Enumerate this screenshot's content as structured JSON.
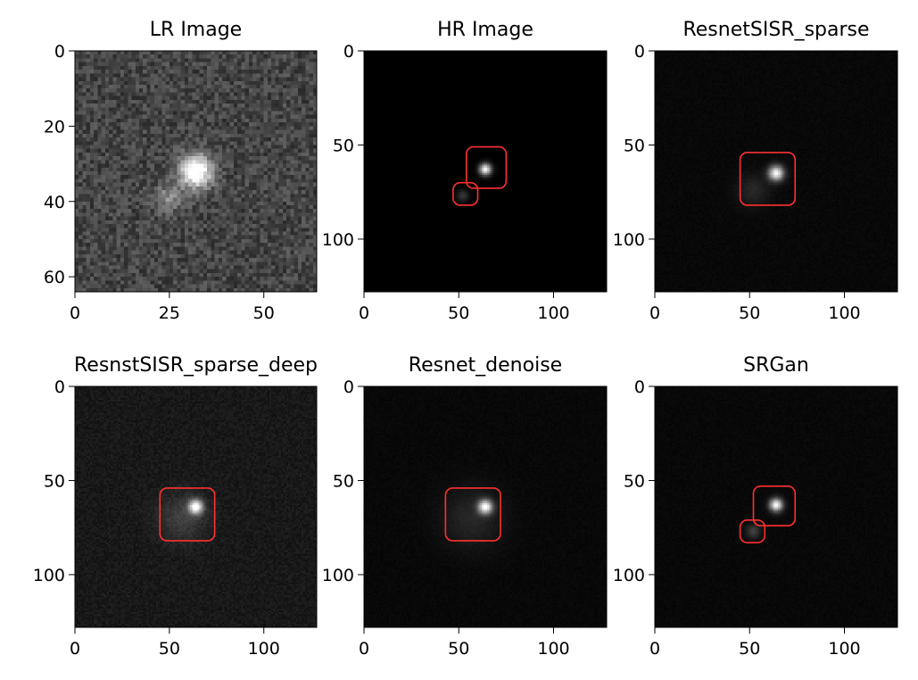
{
  "chart_data": [
    {
      "type": "image",
      "title": "LR Image",
      "xlim": [
        0,
        64
      ],
      "ylim": [
        64,
        0
      ],
      "xticks": [
        0,
        25,
        50
      ],
      "yticks": [
        0,
        20,
        40,
        60
      ],
      "noise": "high",
      "sources": [
        {
          "x": 32,
          "y": 32,
          "peak": 0.92,
          "sigma": 3.0
        },
        {
          "x": 25,
          "y": 39,
          "peak": 0.28,
          "sigma": 2.6
        }
      ],
      "boxes": []
    },
    {
      "type": "image",
      "title": "HR Image",
      "xlim": [
        0,
        128
      ],
      "ylim": [
        128,
        0
      ],
      "xticks": [
        0,
        50,
        100
      ],
      "yticks": [
        0,
        50,
        100
      ],
      "noise": "none",
      "sources": [
        {
          "x": 64,
          "y": 63,
          "peak": 0.98,
          "sigma": 2.2
        },
        {
          "x": 52,
          "y": 77,
          "peak": 0.22,
          "sigma": 2.2
        }
      ],
      "boxes": [
        {
          "x0": 54,
          "y0": 51,
          "x1": 75,
          "y1": 73
        },
        {
          "x0": 47,
          "y0": 70,
          "x1": 60,
          "y1": 82
        }
      ]
    },
    {
      "type": "image",
      "title": "ResnetSISR_sparse",
      "xlim": [
        0,
        128
      ],
      "ylim": [
        128,
        0
      ],
      "xticks": [
        0,
        50,
        100
      ],
      "yticks": [
        0,
        50,
        100
      ],
      "noise": "low",
      "sources": [
        {
          "x": 64,
          "y": 65,
          "peak": 0.95,
          "sigma": 2.8
        },
        {
          "x": 52,
          "y": 74,
          "peak": 0.12,
          "sigma": 6
        }
      ],
      "boxes": [
        {
          "x0": 45,
          "y0": 54,
          "x1": 74,
          "y1": 82
        }
      ]
    },
    {
      "type": "image",
      "title": "ResnstSISR_sparse_deep",
      "xlim": [
        0,
        128
      ],
      "ylim": [
        128,
        0
      ],
      "xticks": [
        0,
        50,
        100
      ],
      "yticks": [
        0,
        50,
        100
      ],
      "noise": "medium",
      "sources": [
        {
          "x": 64,
          "y": 64,
          "peak": 0.95,
          "sigma": 2.6
        },
        {
          "x": 57,
          "y": 70,
          "peak": 0.16,
          "sigma": 9
        }
      ],
      "boxes": [
        {
          "x0": 45,
          "y0": 54,
          "x1": 74,
          "y1": 82
        }
      ]
    },
    {
      "type": "image",
      "title": "Resnet_denoise",
      "xlim": [
        0,
        128
      ],
      "ylim": [
        128,
        0
      ],
      "xticks": [
        0,
        50,
        100
      ],
      "yticks": [
        0,
        50,
        100
      ],
      "noise": "low",
      "sources": [
        {
          "x": 64,
          "y": 64,
          "peak": 0.95,
          "sigma": 2.6
        },
        {
          "x": 57,
          "y": 70,
          "peak": 0.12,
          "sigma": 11
        }
      ],
      "boxes": [
        {
          "x0": 43,
          "y0": 54,
          "x1": 72,
          "y1": 82
        }
      ]
    },
    {
      "type": "image",
      "title": "SRGan",
      "xlim": [
        0,
        128
      ],
      "ylim": [
        128,
        0
      ],
      "xticks": [
        0,
        50,
        100
      ],
      "yticks": [
        0,
        50,
        100
      ],
      "noise": "low",
      "sources": [
        {
          "x": 64,
          "y": 63,
          "peak": 0.96,
          "sigma": 2.4
        },
        {
          "x": 52,
          "y": 77,
          "peak": 0.22,
          "sigma": 2.6
        }
      ],
      "boxes": [
        {
          "x0": 52,
          "y0": 53,
          "x1": 74,
          "y1": 74
        },
        {
          "x0": 45,
          "y0": 71,
          "x1": 58,
          "y1": 83
        }
      ]
    }
  ],
  "colors": {
    "box": "#ff3030",
    "background": "#ffffff",
    "text": "#000000"
  }
}
